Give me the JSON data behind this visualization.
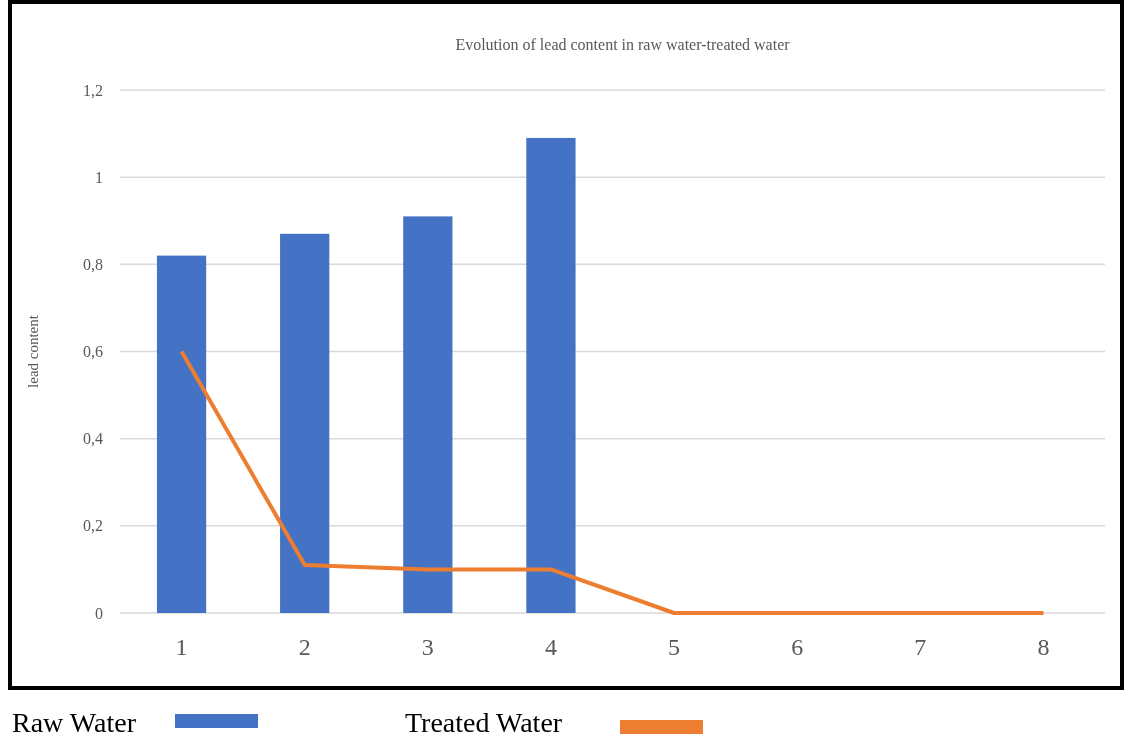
{
  "chart_data": {
    "type": "bar",
    "title": "Evolution of lead content in raw water-treated water",
    "ylabel": "lead content",
    "categories": [
      "1",
      "2",
      "3",
      "4",
      "5",
      "6",
      "7",
      "8"
    ],
    "series": [
      {
        "name": "Raw Water",
        "color": "#4472c4",
        "values": [
          0.82,
          0.87,
          0.91,
          1.09,
          null,
          null,
          null,
          null
        ]
      },
      {
        "name": "Treated Water",
        "type": "line",
        "color": "#ed7d31",
        "values": [
          0.6,
          0.11,
          0.1,
          0.1,
          0,
          0,
          0,
          0
        ]
      }
    ],
    "ylim": [
      0,
      1.2
    ],
    "yticks": [
      0,
      {
        "value": 0.2,
        "label": "0,2"
      },
      {
        "value": 0.4,
        "label": "0,4"
      },
      {
        "value": 0.6,
        "label": "0,6"
      },
      {
        "value": 0.8,
        "label": "0,8"
      },
      1,
      {
        "value": 1.2,
        "label": "1,2"
      }
    ],
    "grid": "y",
    "legend": "bottom",
    "marker": "none",
    "line_style": "solid"
  }
}
